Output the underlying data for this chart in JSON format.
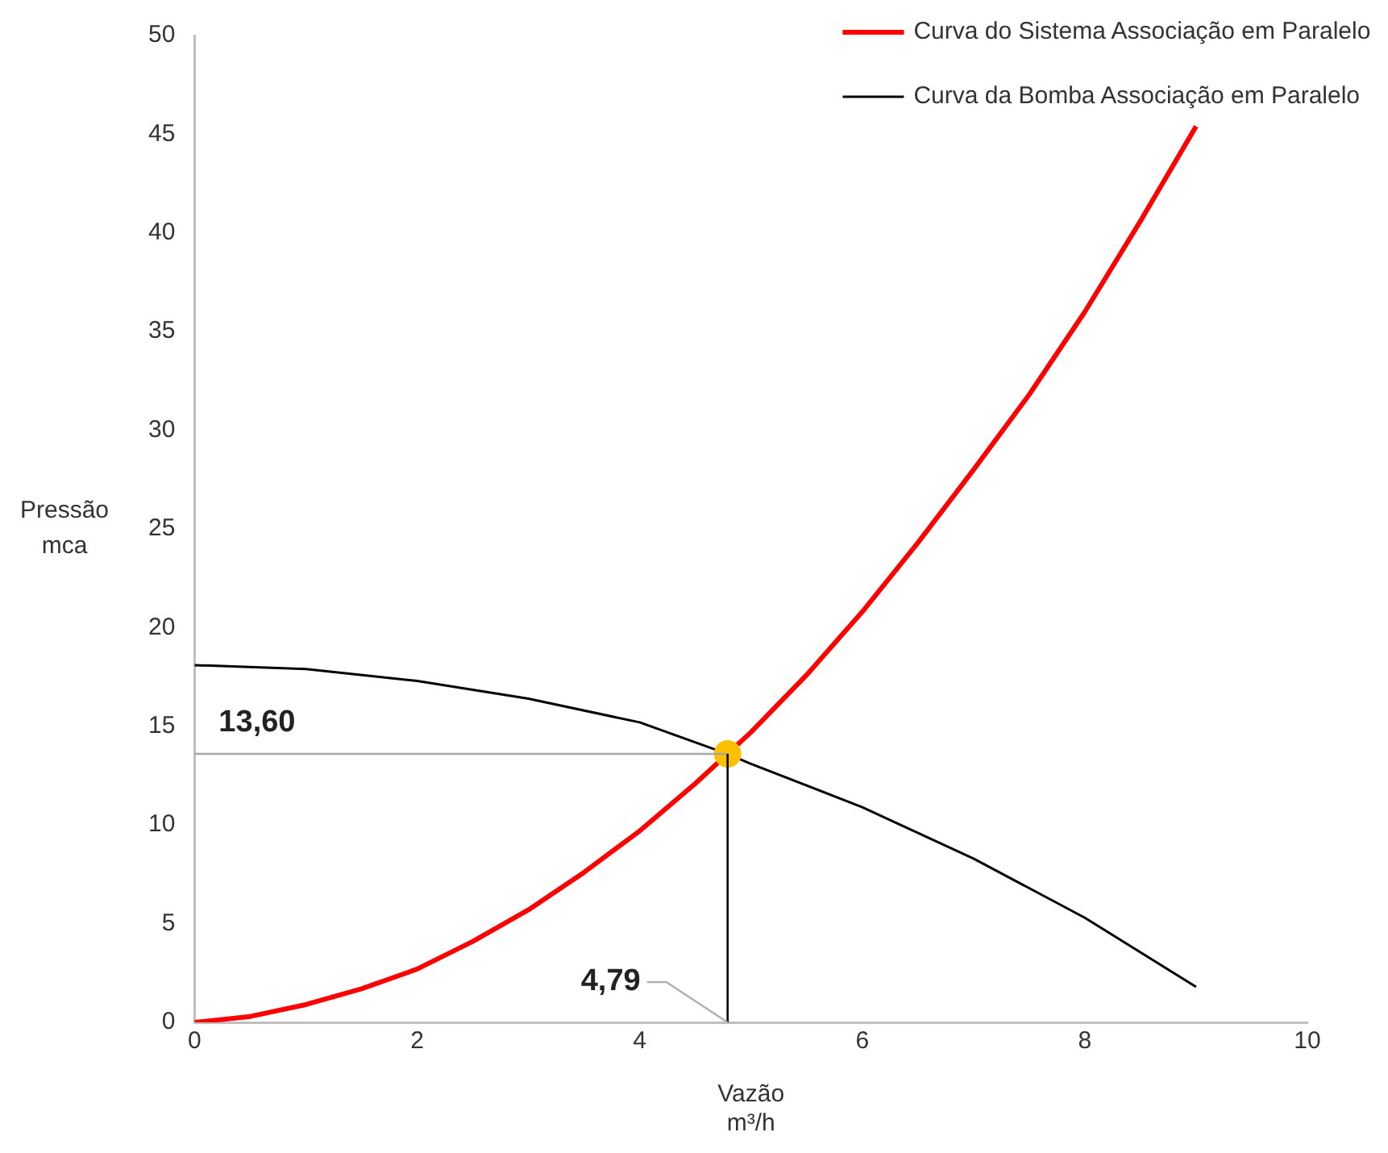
{
  "chart_data": {
    "type": "line",
    "xlabel": "Vazão\nm³/h",
    "ylabel": "Pressão\nmca",
    "xlim": [
      0,
      10
    ],
    "xticks": [
      0,
      2,
      4,
      6,
      8,
      10
    ],
    "ylim": [
      0,
      50
    ],
    "yticks": [
      0,
      5,
      10,
      15,
      20,
      25,
      30,
      35,
      40,
      45,
      50
    ],
    "grid": false,
    "legend": "top right",
    "marker": "none",
    "series": [
      {
        "name": "Curva do Sistema Associação em Paralelo",
        "color": "#ff0000",
        "x": [
          0,
          0.5,
          1,
          1.5,
          2,
          2.5,
          3,
          3.5,
          4,
          4.5,
          5,
          5.5,
          6,
          6.5,
          7,
          7.5,
          8,
          8.5,
          9
        ],
        "values": [
          0,
          0.3,
          0.9,
          1.7,
          2.7,
          4.1,
          5.7,
          7.6,
          9.7,
          12.1,
          14.7,
          17.6,
          20.8,
          24.3,
          28,
          31.8,
          36,
          40.6,
          45.4
        ]
      },
      {
        "name": "Curva da Bomba Associação em Paralelo",
        "color": "#000000",
        "x": [
          0,
          1,
          2,
          3,
          4,
          4.79,
          5,
          6,
          7,
          8,
          9
        ],
        "values": [
          18.1,
          17.9,
          17.3,
          16.4,
          15.2,
          13.6,
          13.1,
          10.9,
          8.3,
          5.3,
          1.8
        ]
      },
      {
        "type": "scatter",
        "marker": "circle",
        "color": "#ffc000",
        "x": [
          4.79
        ],
        "values": [
          13.6
        ]
      }
    ],
    "ref_lines": [
      {
        "axis": "y",
        "value": 13.6,
        "label": "13,60",
        "color": "#a6a6a6"
      },
      {
        "axis": "x",
        "value": 4.79,
        "label": "4,79",
        "color": "#000000"
      }
    ]
  }
}
